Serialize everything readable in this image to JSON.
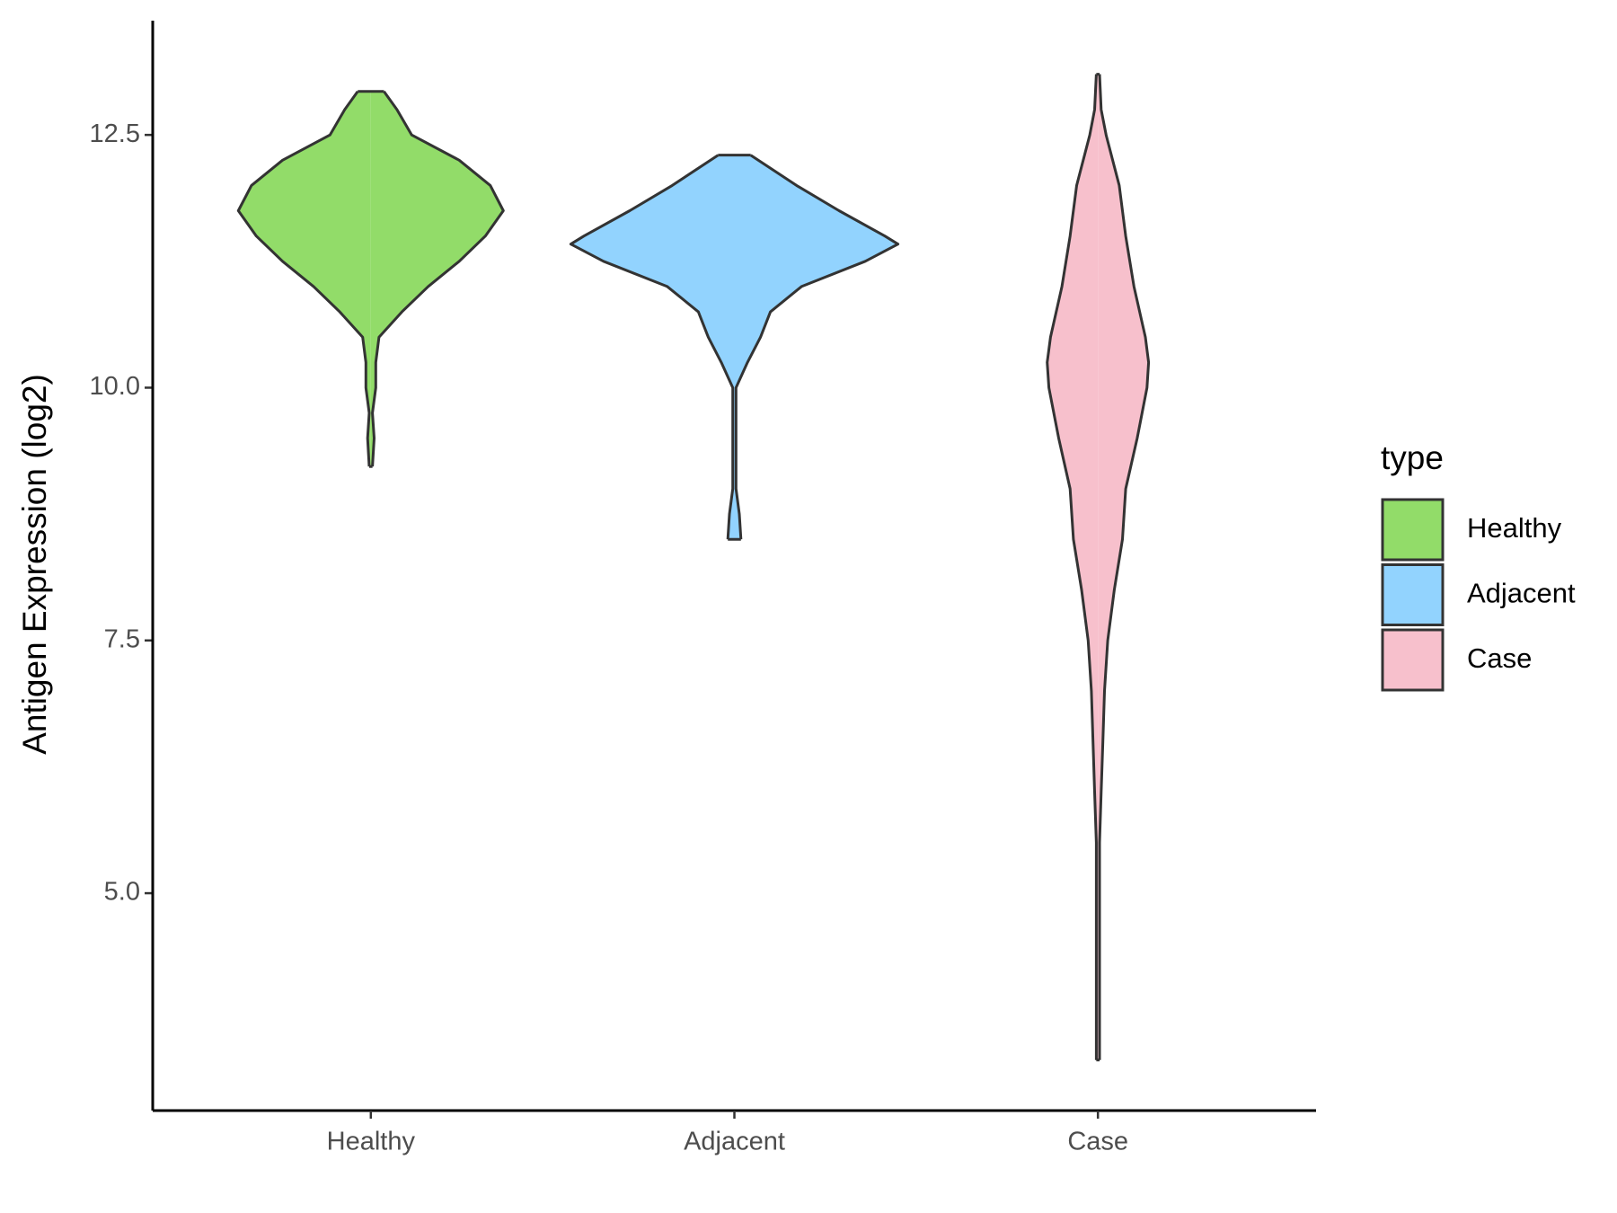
{
  "chart_data": {
    "type": "violin",
    "y_label": "Antigen Expression (log2)",
    "categories": [
      "Healthy",
      "Adjacent",
      "Case"
    ],
    "legend_title": "type",
    "series": [
      {
        "name": "Healthy",
        "color": "#92dc69",
        "y": [
          12.93,
          12.75,
          12.5,
          12.25,
          12,
          11.75,
          11.5,
          11.25,
          11,
          10.75,
          10.5,
          10.25,
          10,
          9.75,
          9.5,
          9.22
        ],
        "density": [
          0.08,
          0.16,
          0.25,
          0.54,
          0.73,
          0.81,
          0.7,
          0.54,
          0.35,
          0.19,
          0.05,
          0.03,
          0.03,
          0.01,
          0.02,
          0.01
        ]
      },
      {
        "name": "Adjacent",
        "color": "#92d3fe",
        "y": [
          12.3,
          12,
          11.75,
          11.5,
          11.42,
          11.25,
          11,
          10.75,
          10.5,
          10.25,
          10,
          9.5,
          9,
          8.75,
          8.5
        ],
        "density": [
          0.1,
          0.38,
          0.64,
          0.92,
          1,
          0.8,
          0.41,
          0.22,
          0.16,
          0.08,
          0.01,
          0.01,
          0.01,
          0.03,
          0.04
        ]
      },
      {
        "name": "Case",
        "color": "#f7c0cc",
        "y": [
          13.1,
          12.75,
          12.5,
          12,
          11.5,
          11,
          10.5,
          10.25,
          10,
          9.5,
          9,
          8.5,
          8,
          7.5,
          7,
          6.5,
          6,
          5.5,
          4,
          3.35
        ],
        "density": [
          0.01,
          0.02,
          0.05,
          0.13,
          0.17,
          0.22,
          0.29,
          0.31,
          0.3,
          0.24,
          0.17,
          0.15,
          0.1,
          0.06,
          0.04,
          0.03,
          0.02,
          0.01,
          0.01,
          0.01
        ]
      }
    ],
    "ylim": [
      2.85,
      13.63
    ],
    "yticks": [
      {
        "value": 5,
        "label": "5.0"
      },
      7.5,
      {
        "value": 10,
        "label": "10.0"
      },
      12.5
    ]
  }
}
